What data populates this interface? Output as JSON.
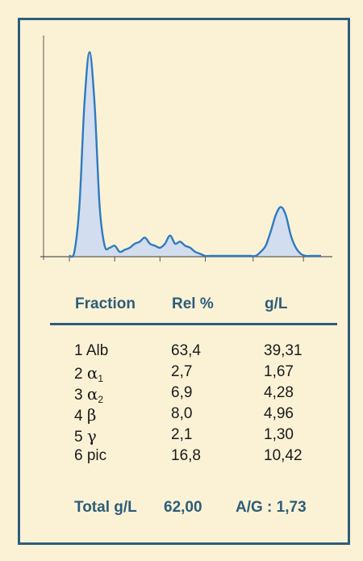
{
  "chart_data": {
    "type": "area",
    "title": "",
    "xlabel": "",
    "ylabel": "",
    "grid": false,
    "x": [
      0,
      2,
      4,
      6,
      8,
      10,
      12,
      14,
      16,
      18,
      20,
      22,
      24,
      26,
      28,
      30,
      32,
      34,
      36,
      38,
      40,
      42,
      44,
      46,
      48,
      50,
      52,
      54,
      56,
      58,
      60,
      62,
      64,
      66,
      68,
      70,
      72,
      74,
      76,
      78,
      80,
      82,
      84,
      86,
      88,
      90,
      92,
      94,
      96,
      98,
      100
    ],
    "y": [
      0.0,
      0.02,
      0.25,
      0.75,
      1.0,
      0.75,
      0.25,
      0.05,
      0.04,
      0.05,
      0.02,
      0.03,
      0.04,
      0.06,
      0.07,
      0.09,
      0.06,
      0.05,
      0.04,
      0.06,
      0.1,
      0.06,
      0.07,
      0.05,
      0.04,
      0.02,
      0.01,
      0.0,
      0.0,
      0.0,
      0.0,
      0.0,
      0.0,
      0.0,
      0.0,
      0.0,
      0.0,
      0.0,
      0.02,
      0.05,
      0.12,
      0.2,
      0.24,
      0.2,
      0.1,
      0.04,
      0.01,
      0.0,
      0.0,
      0.0,
      0.0
    ],
    "xlim": [
      0,
      100
    ],
    "ylim": [
      0,
      1.05
    ],
    "x_ticks": [
      0,
      18,
      36,
      54,
      73,
      93
    ],
    "fill_color": "#d2ddef",
    "line_color": "#2e7bbf",
    "axis_color": "#555555"
  },
  "table": {
    "headers": [
      "Fraction",
      "Rel %",
      "g/L"
    ],
    "rows": [
      {
        "num": "1",
        "name": "Alb",
        "sub": "",
        "rel": "63,4",
        "gl": "39,31"
      },
      {
        "num": "2",
        "name": "α",
        "sub": "1",
        "rel": "2,7",
        "gl": "1,67"
      },
      {
        "num": "3",
        "name": "α",
        "sub": "2",
        "rel": "6,9",
        "gl": "4,28"
      },
      {
        "num": "4",
        "name": "β",
        "sub": "",
        "rel": "8,0",
        "gl": "4,96"
      },
      {
        "num": "5",
        "name": "γ",
        "sub": "",
        "rel": "2,1",
        "gl": "1,30"
      },
      {
        "num": "6",
        "name": "pic",
        "sub": "",
        "rel": "16,8",
        "gl": "10,42"
      }
    ]
  },
  "footer": {
    "total_label": "Total g/L",
    "total_value": "62,00",
    "ag_ratio": "A/G : 1,73"
  },
  "colors": {
    "background": "#fbf2d6",
    "frame": "#2e5d79",
    "header_text": "#2e5d79"
  }
}
